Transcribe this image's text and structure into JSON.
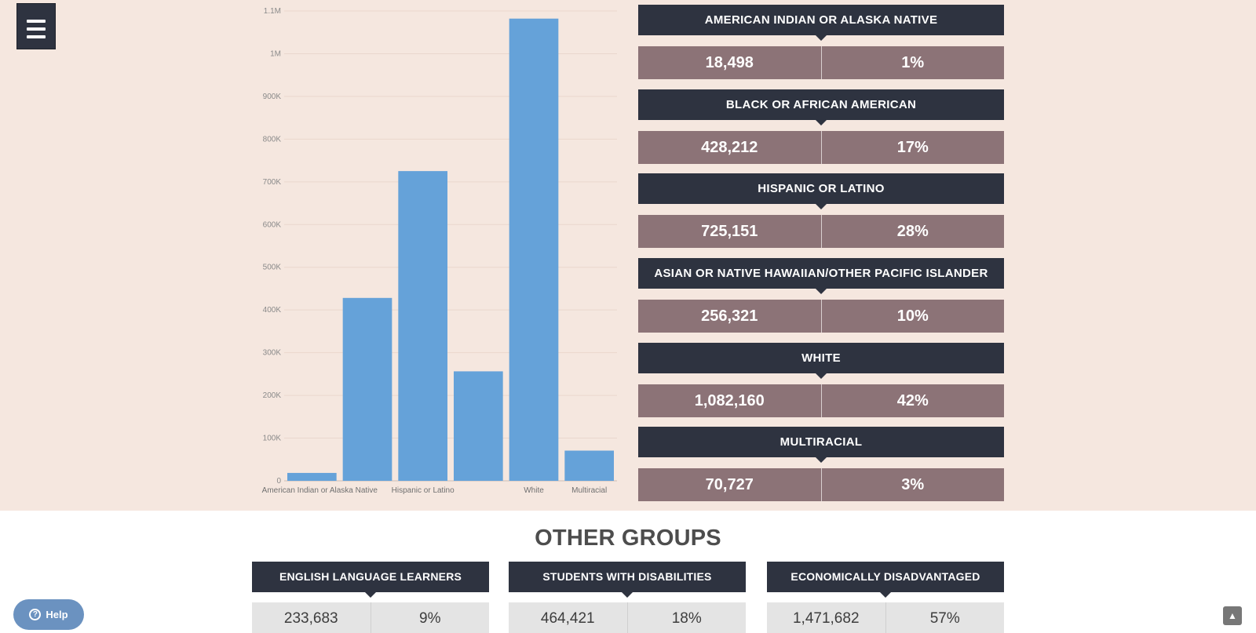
{
  "chart_data": {
    "type": "bar",
    "categories": [
      "American Indian or Alaska Native",
      "Black or African American",
      "Hispanic or Latino",
      "Asian or Native Hawaiian/Other Pacific Islander",
      "White",
      "Multiracial"
    ],
    "x_tick_labels": [
      "American Indian or Alaska Native",
      "",
      "Hispanic or Latino",
      "",
      "White",
      "Multiracial"
    ],
    "values": [
      18498,
      428212,
      725151,
      256321,
      1082160,
      70727
    ],
    "y_ticks": [
      0,
      100000,
      200000,
      300000,
      400000,
      500000,
      600000,
      700000,
      800000,
      900000,
      1000000,
      1100000
    ],
    "y_tick_labels": [
      "0",
      "100K",
      "200K",
      "300K",
      "400K",
      "500K",
      "600K",
      "700K",
      "800K",
      "900K",
      "1M",
      "1.1M"
    ],
    "ylim": [
      0,
      1100000
    ],
    "grid": true,
    "bar_color": "#65a2d9"
  },
  "ethnicities": [
    {
      "label": "AMERICAN INDIAN OR ALASKA NATIVE",
      "count": "18,498",
      "percent": "1%"
    },
    {
      "label": "BLACK OR AFRICAN AMERICAN",
      "count": "428,212",
      "percent": "17%"
    },
    {
      "label": "HISPANIC OR LATINO",
      "count": "725,151",
      "percent": "28%"
    },
    {
      "label": "ASIAN OR NATIVE HAWAIIAN/OTHER PACIFIC ISLANDER",
      "count": "256,321",
      "percent": "10%"
    },
    {
      "label": "WHITE",
      "count": "1,082,160",
      "percent": "42%"
    },
    {
      "label": "MULTIRACIAL",
      "count": "70,727",
      "percent": "3%"
    }
  ],
  "other_groups": {
    "title": "OTHER GROUPS",
    "items": [
      {
        "label": "ENGLISH LANGUAGE LEARNERS",
        "count": "233,683",
        "percent": "9%"
      },
      {
        "label": "STUDENTS WITH DISABILITIES",
        "count": "464,421",
        "percent": "18%"
      },
      {
        "label": "ECONOMICALLY DISADVANTAGED",
        "count": "1,471,682",
        "percent": "57%"
      }
    ]
  },
  "help": {
    "label": "Help",
    "icon": "question-circle-icon"
  },
  "menu": {
    "icon": "hamburger-menu-icon"
  },
  "scroll_top": {
    "icon": "chevron-up-icon"
  },
  "colors": {
    "top_bg": "#f5e7df",
    "header_bg": "#2e3340",
    "value_bg": "#8c7377",
    "group_value_bg": "#e4e4e4",
    "help_bg": "#6b92c0"
  }
}
